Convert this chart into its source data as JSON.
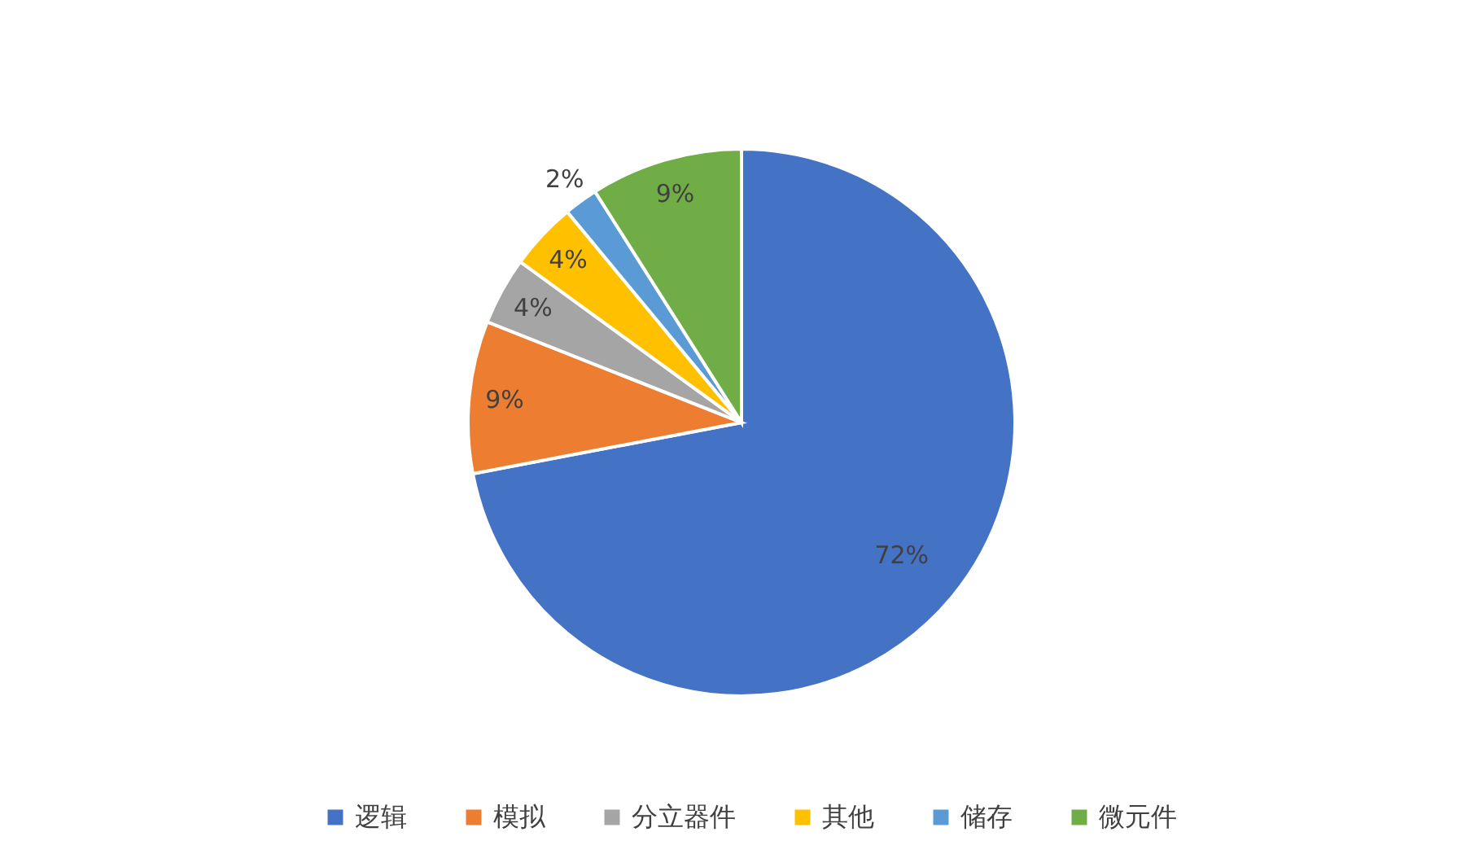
{
  "chart_data": {
    "type": "pie",
    "categories": [
      "逻辑",
      "模拟",
      "分立器件",
      "其他",
      "储存",
      "微元件"
    ],
    "values": [
      72,
      9,
      4,
      4,
      2,
      9
    ],
    "colors": [
      "#4472c4",
      "#ed7d31",
      "#a5a5a5",
      "#ffc000",
      "#5b9bd5",
      "#70ad47"
    ],
    "value_labels": [
      "72%",
      "9%",
      "4%",
      "4%",
      "2%",
      "9%"
    ],
    "legend": "bottom"
  }
}
